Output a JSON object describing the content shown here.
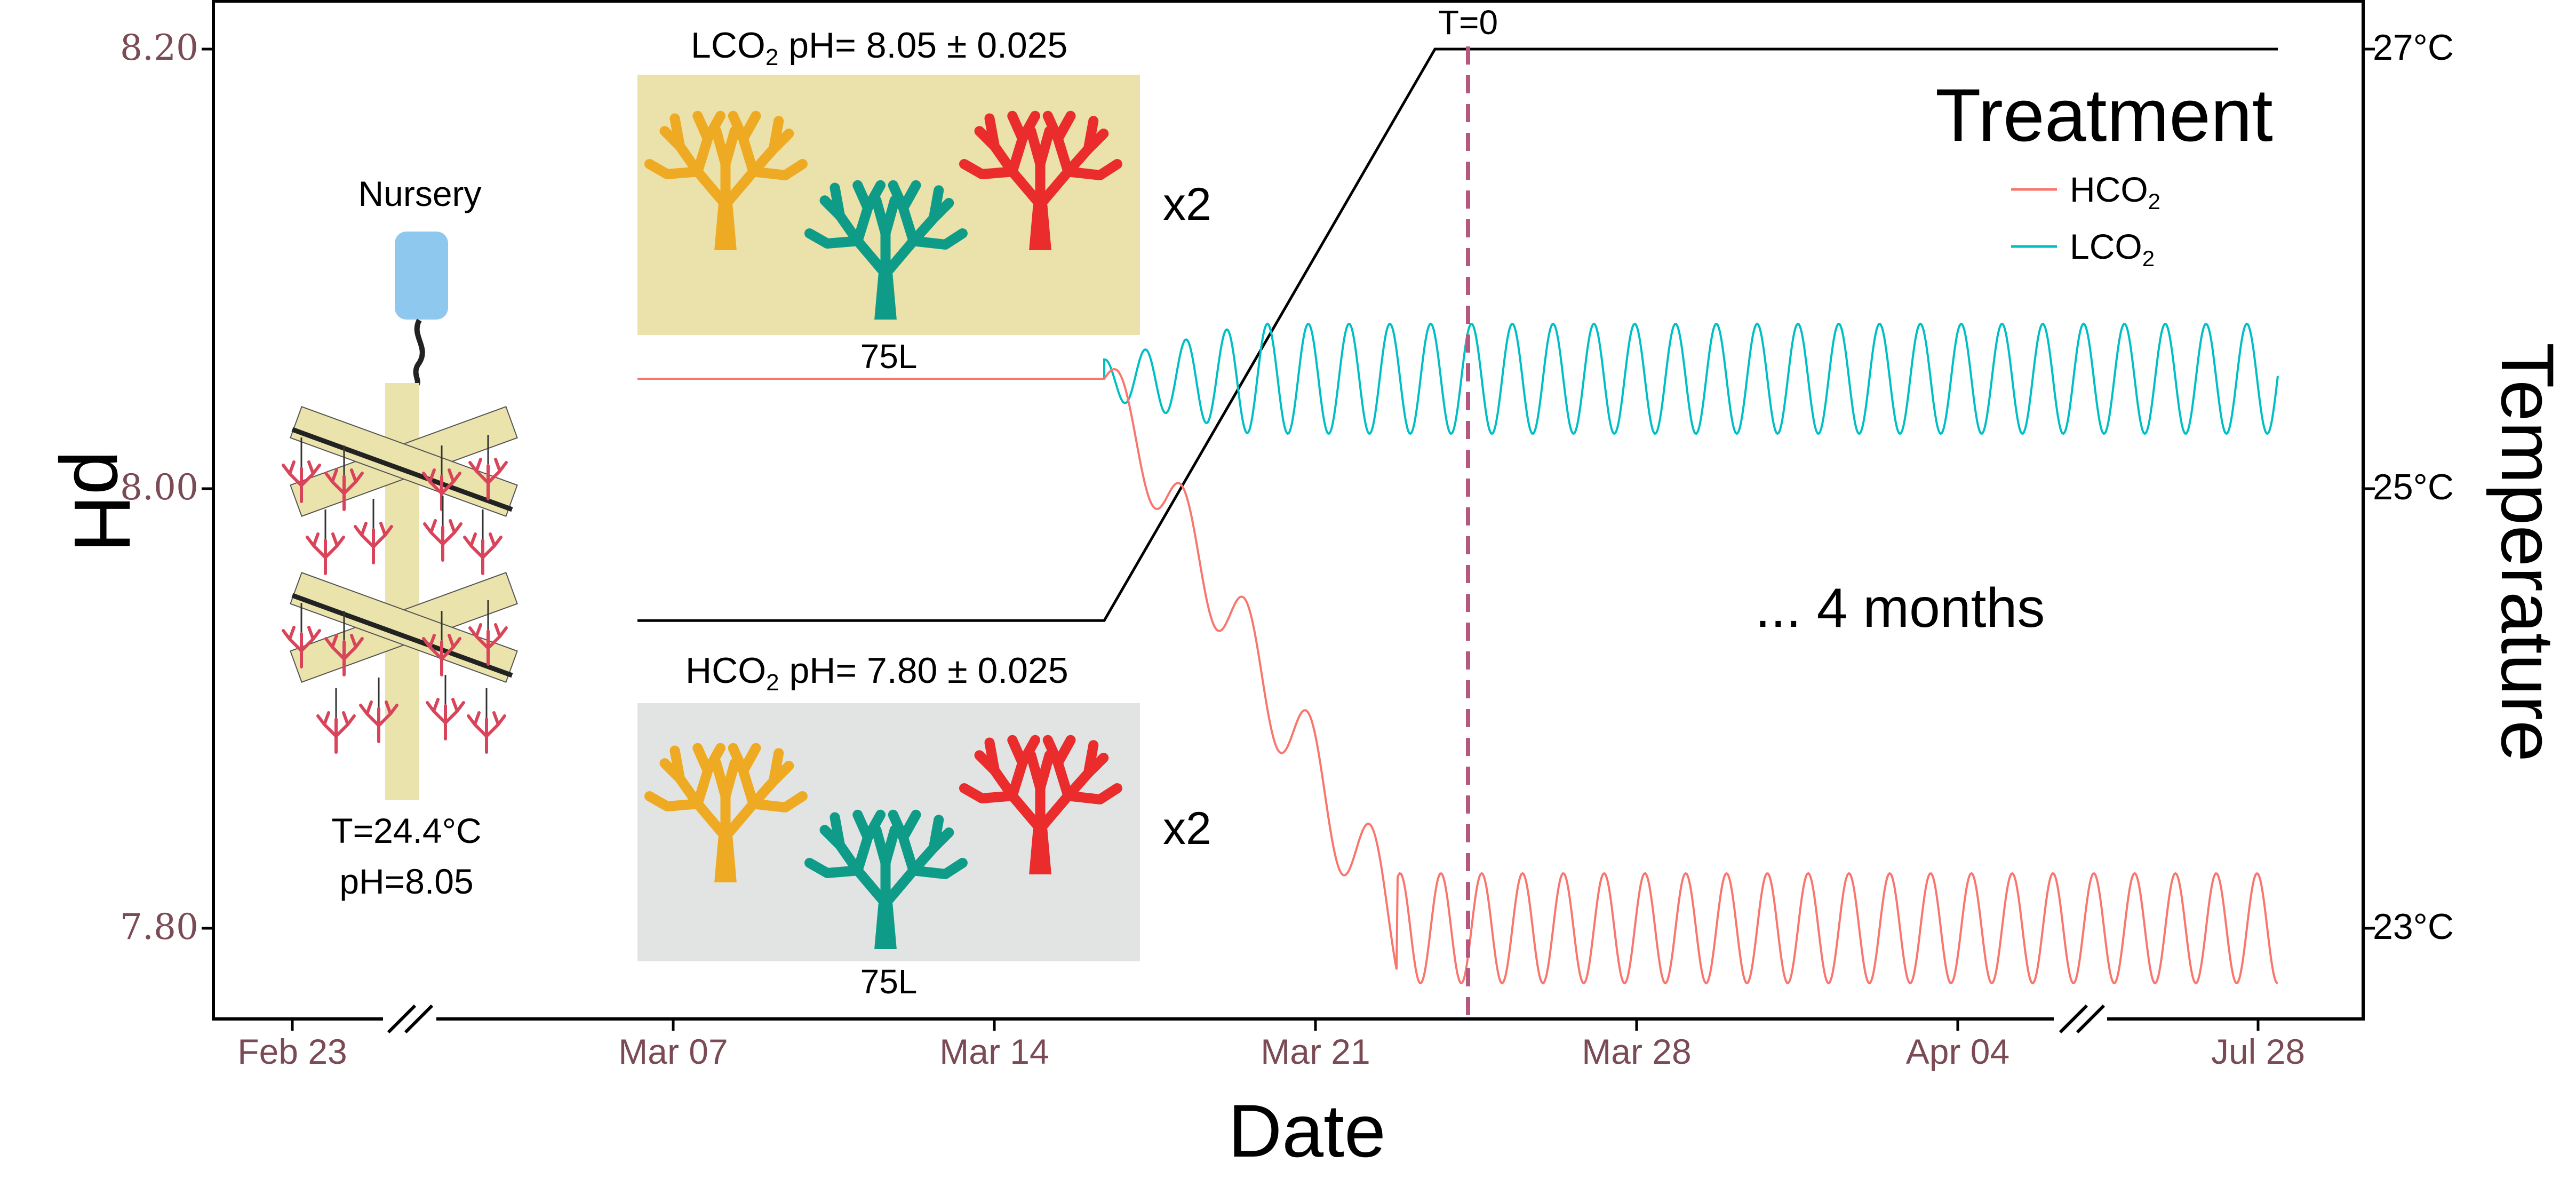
{
  "chart_data": {
    "type": "line",
    "xlabel": "Date",
    "ylabel_left": "pH",
    "ylabel_right": "Temperature",
    "x_ticks": [
      "Feb 23",
      "Mar 07",
      "Mar 14",
      "Mar 21",
      "Mar 28",
      "Apr 04",
      "Jul 28"
    ],
    "y_left_ticks": [
      "8.20",
      "8.00",
      "7.80"
    ],
    "y_right_ticks": [
      "27°C",
      "25°C",
      "23°C"
    ],
    "ylim_left": [
      7.755,
      8.22
    ],
    "axis_breaks": [
      "between Feb 23 and Mar 07",
      "between Apr 04 and Jul 28"
    ],
    "grid": false,
    "legend": {
      "title": "Treatment",
      "position": "top-right",
      "entries": [
        {
          "label": "HCO",
          "sub": "2",
          "color": "#f8766d"
        },
        {
          "label": "LCO",
          "sub": "2",
          "color": "#00bfc4"
        }
      ]
    },
    "series": [
      {
        "name": "HCO2",
        "color": "#f8766d",
        "baseline_pH": 8.05,
        "ramp_end_pH": 7.8,
        "oscillation_amplitude": 0.025
      },
      {
        "name": "LCO2",
        "color": "#00bfc4",
        "baseline_pH": 8.05,
        "oscillation_amplitude": 0.025
      },
      {
        "name": "Temperature",
        "color": "#000000",
        "start_temp": 24.4,
        "end_temp": 27
      }
    ],
    "annotations": {
      "t0": "T=0",
      "duration": "... 4 months",
      "lco2_box_label": "LCO",
      "lco2_box_sub": "2",
      "lco2_box_value": " pH= 8.05 ± 0.025",
      "hco2_box_label": "HCO",
      "hco2_box_sub": "2",
      "hco2_box_value": " pH= 7.80 ± 0.025",
      "tank_volume_top": "75L",
      "tank_volume_bottom": "75L",
      "replicates_top": "x2",
      "replicates_bottom": "x2",
      "nursery_label": "Nursery",
      "nursery_temp": "T=24.4°C",
      "nursery_ph": "pH=8.05"
    },
    "colors": {
      "axis_tick_text": "#7a4b55",
      "t0_line": "#b5577f",
      "lco2_box_fill": "#ebe1aa",
      "hco2_box_fill": "#e2e4e3",
      "coral_yellow": "#eeaa22",
      "coral_teal": "#0e9c88",
      "coral_red": "#ea2c2c",
      "nursery_frame": "#ebe3ac",
      "nursery_buoy": "#8ec8ee",
      "nursery_coral": "#d8445a"
    }
  }
}
